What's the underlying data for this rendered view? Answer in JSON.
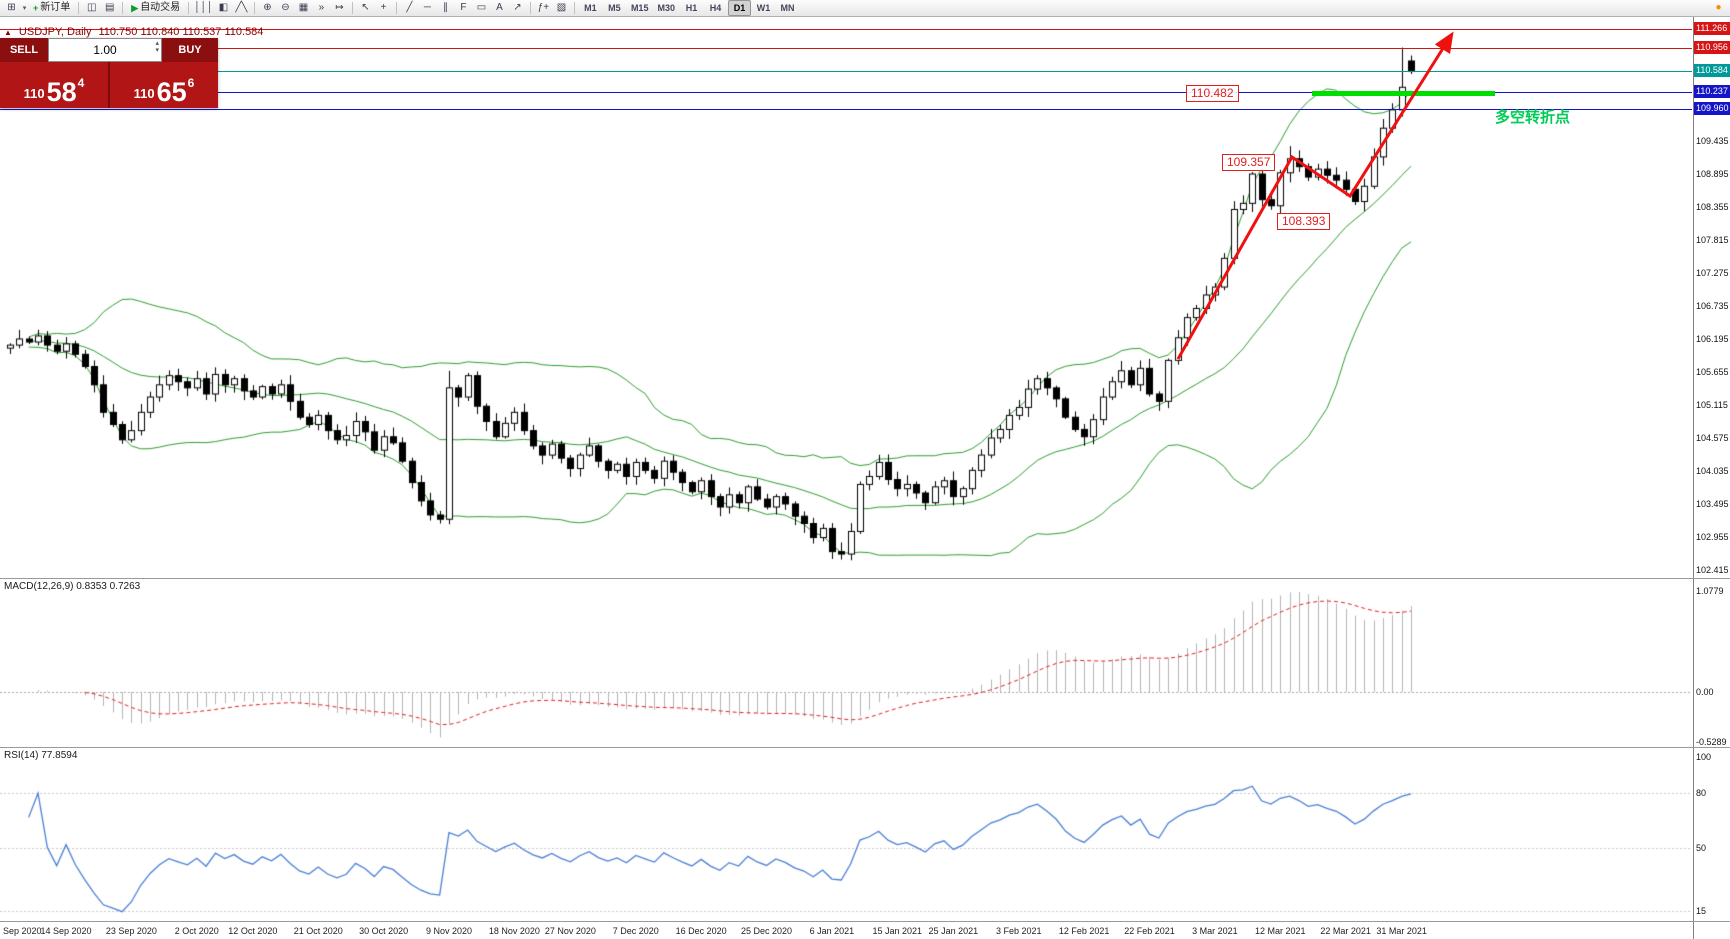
{
  "toolbar": {
    "timeframes": [
      "M1",
      "M5",
      "M15",
      "M30",
      "H1",
      "H4",
      "D1",
      "W1",
      "MN"
    ],
    "active_timeframe": "D1",
    "items": [
      {
        "t": "icon",
        "name": "new-chart-icon",
        "g": "⊞"
      },
      {
        "t": "caret",
        "name": "new-chart-caret-icon",
        "g": "▾"
      },
      {
        "t": "text",
        "name": "new-order-button",
        "label": "新订单",
        "ic": "+",
        "icn": "new-order-plus-icon",
        "icc": "#1a9c1a"
      },
      {
        "t": "sep"
      },
      {
        "t": "icon",
        "name": "chart-window-icon",
        "g": "◫"
      },
      {
        "t": "icon",
        "name": "profiles-icon",
        "g": "▤"
      },
      {
        "t": "sep"
      },
      {
        "t": "text",
        "name": "auto-trading-button",
        "label": "自动交易",
        "ic": "▶",
        "icn": "auto-trading-play-icon",
        "icc": "#0c9c2c"
      },
      {
        "t": "sep"
      },
      {
        "t": "icon",
        "name": "bar-chart-icon",
        "g": "│││"
      },
      {
        "t": "icon",
        "name": "candlestick-chart-icon",
        "g": "◧"
      },
      {
        "t": "icon",
        "name": "line-chart-icon",
        "g": "╱╲"
      },
      {
        "t": "sep"
      },
      {
        "t": "icon",
        "name": "zoom-in-icon",
        "g": "⊕"
      },
      {
        "t": "icon",
        "name": "zoom-out-icon",
        "g": "⊖"
      },
      {
        "t": "icon",
        "name": "tile-windows-icon",
        "g": "▦"
      },
      {
        "t": "icon",
        "name": "auto-scroll-icon",
        "g": "»"
      },
      {
        "t": "icon",
        "name": "chart-shift-icon",
        "g": "↦"
      },
      {
        "t": "sep"
      },
      {
        "t": "icon",
        "name": "cursor-icon",
        "g": "↖"
      },
      {
        "t": "icon",
        "name": "crosshair-icon",
        "g": "+"
      },
      {
        "t": "sep"
      },
      {
        "t": "icon",
        "name": "trendline-icon",
        "g": "╱"
      },
      {
        "t": "icon",
        "name": "horizontal-line-icon",
        "g": "─"
      },
      {
        "t": "icon",
        "name": "equidistant-channel-icon",
        "g": "∥"
      },
      {
        "t": "icon",
        "name": "fibonacci-icon",
        "g": "F"
      },
      {
        "t": "icon",
        "name": "shapes-icon",
        "g": "▭"
      },
      {
        "t": "icon",
        "name": "text-icon",
        "g": "A"
      },
      {
        "t": "icon",
        "name": "arrow-tools-icon",
        "g": "↗"
      },
      {
        "t": "sep"
      },
      {
        "t": "icon",
        "name": "indicators-icon",
        "g": "ƒ+"
      },
      {
        "t": "icon",
        "name": "templates-icon",
        "g": "▧"
      },
      {
        "t": "sep"
      },
      {
        "t": "timeframes"
      },
      {
        "t": "spacer"
      },
      {
        "t": "icon",
        "name": "status-dot-icon",
        "g": "●",
        "cls": "status-dot"
      }
    ]
  },
  "chart": {
    "info_marker": "▲",
    "symbol_title": "USDJPY, Daily",
    "ohlc_text": "110.750 110.840 110.537 110.584",
    "one_click": {
      "sell_label": "SELL",
      "buy_label": "BUY",
      "volume": "1.00",
      "sell_base": "110",
      "sell_pips": "58",
      "sell_frac": "4",
      "buy_base": "110",
      "buy_pips": "65",
      "buy_frac": "6"
    },
    "annotations": {
      "resistance_box": "110.482",
      "high_box": "109.357",
      "low_box": "108.393",
      "turning_point_text": "多空转折点"
    },
    "levels": [
      {
        "value": 111.266,
        "style": "red"
      },
      {
        "value": 110.956,
        "style": "red"
      },
      {
        "value": 110.584,
        "style": "teal"
      },
      {
        "value": 110.237,
        "style": "blue"
      },
      {
        "value": 109.96,
        "style": "blue"
      }
    ],
    "axis_ticks": [
      109.435,
      108.895,
      108.355,
      107.815,
      107.275,
      106.735,
      106.195,
      105.655,
      105.115,
      104.575,
      104.035,
      103.495,
      102.955,
      102.415
    ],
    "dates": [
      {
        "label": "Sep 2020",
        "i": 0
      },
      {
        "label": "14 Sep 2020",
        "i": 6
      },
      {
        "label": "23 Sep 2020",
        "i": 13
      },
      {
        "label": "2 Oct 2020",
        "i": 20
      },
      {
        "label": "12 Oct 2020",
        "i": 26
      },
      {
        "label": "21 Oct 2020",
        "i": 33
      },
      {
        "label": "30 Oct 2020",
        "i": 40
      },
      {
        "label": "9 Nov 2020",
        "i": 47
      },
      {
        "label": "18 Nov 2020",
        "i": 54
      },
      {
        "label": "27 Nov 2020",
        "i": 60
      },
      {
        "label": "7 Dec 2020",
        "i": 67
      },
      {
        "label": "16 Dec 2020",
        "i": 74
      },
      {
        "label": "25 Dec 2020",
        "i": 81
      },
      {
        "label": "6 Jan 2021",
        "i": 88
      },
      {
        "label": "15 Jan 2021",
        "i": 95
      },
      {
        "label": "25 Jan 2021",
        "i": 101
      },
      {
        "label": "3 Feb 2021",
        "i": 108
      },
      {
        "label": "12 Feb 2021",
        "i": 115
      },
      {
        "label": "22 Feb 2021",
        "i": 122
      },
      {
        "label": "3 Mar 2021",
        "i": 129
      },
      {
        "label": "12 Mar 2021",
        "i": 136
      },
      {
        "label": "22 Mar 2021",
        "i": 143
      },
      {
        "label": "31 Mar 2021",
        "i": 149
      }
    ]
  },
  "indicators": {
    "macd": {
      "label": "MACD(12,26,9) 0.8353 0.7263",
      "axis": [
        {
          "text": "1.0779",
          "v": 1.0779
        },
        {
          "text": "0.00",
          "v": 0
        },
        {
          "text": "-0.5289",
          "v": -0.5289
        }
      ]
    },
    "rsi": {
      "label": "RSI(14) 77.8594",
      "axis": [
        {
          "text": "100",
          "v": 100
        },
        {
          "text": "80",
          "v": 80
        },
        {
          "text": "50",
          "v": 50
        },
        {
          "text": "15",
          "v": 15
        }
      ]
    }
  },
  "chart_data": {
    "type": "candlestick",
    "symbol": "USDJPY",
    "timeframe": "Daily",
    "current_ohlc": {
      "open": 110.75,
      "high": 110.84,
      "low": 110.537,
      "close": 110.584
    },
    "bollinger_period": 20,
    "bollinger_dev": 2,
    "macd_params": [
      12,
      26,
      9
    ],
    "rsi_period": 14,
    "price_range_visible": [
      102.415,
      111.47
    ],
    "closes": [
      106.1,
      106.2,
      106.15,
      106.25,
      106.1,
      106.0,
      106.12,
      105.95,
      105.75,
      105.45,
      105.0,
      104.8,
      104.55,
      104.7,
      105.0,
      105.25,
      105.45,
      105.6,
      105.5,
      105.4,
      105.55,
      105.3,
      105.62,
      105.45,
      105.55,
      105.35,
      105.25,
      105.42,
      105.3,
      105.45,
      105.18,
      104.92,
      104.8,
      104.95,
      104.7,
      104.55,
      104.62,
      104.85,
      104.68,
      104.38,
      104.6,
      104.5,
      104.2,
      103.85,
      103.55,
      103.32,
      103.25,
      105.4,
      105.25,
      105.6,
      105.1,
      104.85,
      104.6,
      104.82,
      105.0,
      104.7,
      104.45,
      104.3,
      104.48,
      104.25,
      104.08,
      104.3,
      104.45,
      104.2,
      104.05,
      104.15,
      103.95,
      104.18,
      104.05,
      103.92,
      104.2,
      104.02,
      103.85,
      103.7,
      103.88,
      103.62,
      103.45,
      103.65,
      103.52,
      103.78,
      103.58,
      103.45,
      103.62,
      103.5,
      103.3,
      103.18,
      102.95,
      103.1,
      102.72,
      102.68,
      103.05,
      103.82,
      103.95,
      104.18,
      103.9,
      103.75,
      103.82,
      103.68,
      103.52,
      103.78,
      103.88,
      103.62,
      103.75,
      104.05,
      104.3,
      104.58,
      104.72,
      104.95,
      105.08,
      105.38,
      105.55,
      105.4,
      105.22,
      104.92,
      104.72,
      104.6,
      104.88,
      105.25,
      105.5,
      105.68,
      105.45,
      105.72,
      105.3,
      105.18,
      105.85,
      106.22,
      106.55,
      106.7,
      106.92,
      107.05,
      107.52,
      108.32,
      108.42,
      108.9,
      108.48,
      108.38,
      108.92,
      109.15,
      109.02,
      108.85,
      108.98,
      108.88,
      108.8,
      108.65,
      108.45,
      108.7,
      109.18,
      109.65,
      109.95,
      110.32,
      110.58
    ],
    "overrides": {
      "46": {
        "low": 103.18
      },
      "47": {
        "high": 105.68
      },
      "88": {
        "low": 102.6
      },
      "89": {
        "low": 102.59
      },
      "137": {
        "high": 109.357
      },
      "144": {
        "low": 108.393
      },
      "149": {
        "high": 110.97
      },
      "150": {
        "open": 110.75,
        "high": 110.84,
        "low": 110.537,
        "close": 110.584
      }
    }
  },
  "colors": {
    "up": "#ffffff",
    "down": "#000000",
    "band": "#2d9c2d",
    "macd_hist": "#b4b4b4",
    "macd_signal": "#e02020",
    "rsi": "#4a7fd4",
    "resistance": "#d61414",
    "level_blue": "#1414c8",
    "bid_teal": "#009999",
    "support_green": "#00dd00",
    "annotation_red": "#e02020",
    "arrow_red": "#f01010",
    "turning_green": "#00cc55",
    "panel_red": "#b11515",
    "panel_dark_red": "#8c0f10",
    "info_maroon": "#8b0000"
  }
}
